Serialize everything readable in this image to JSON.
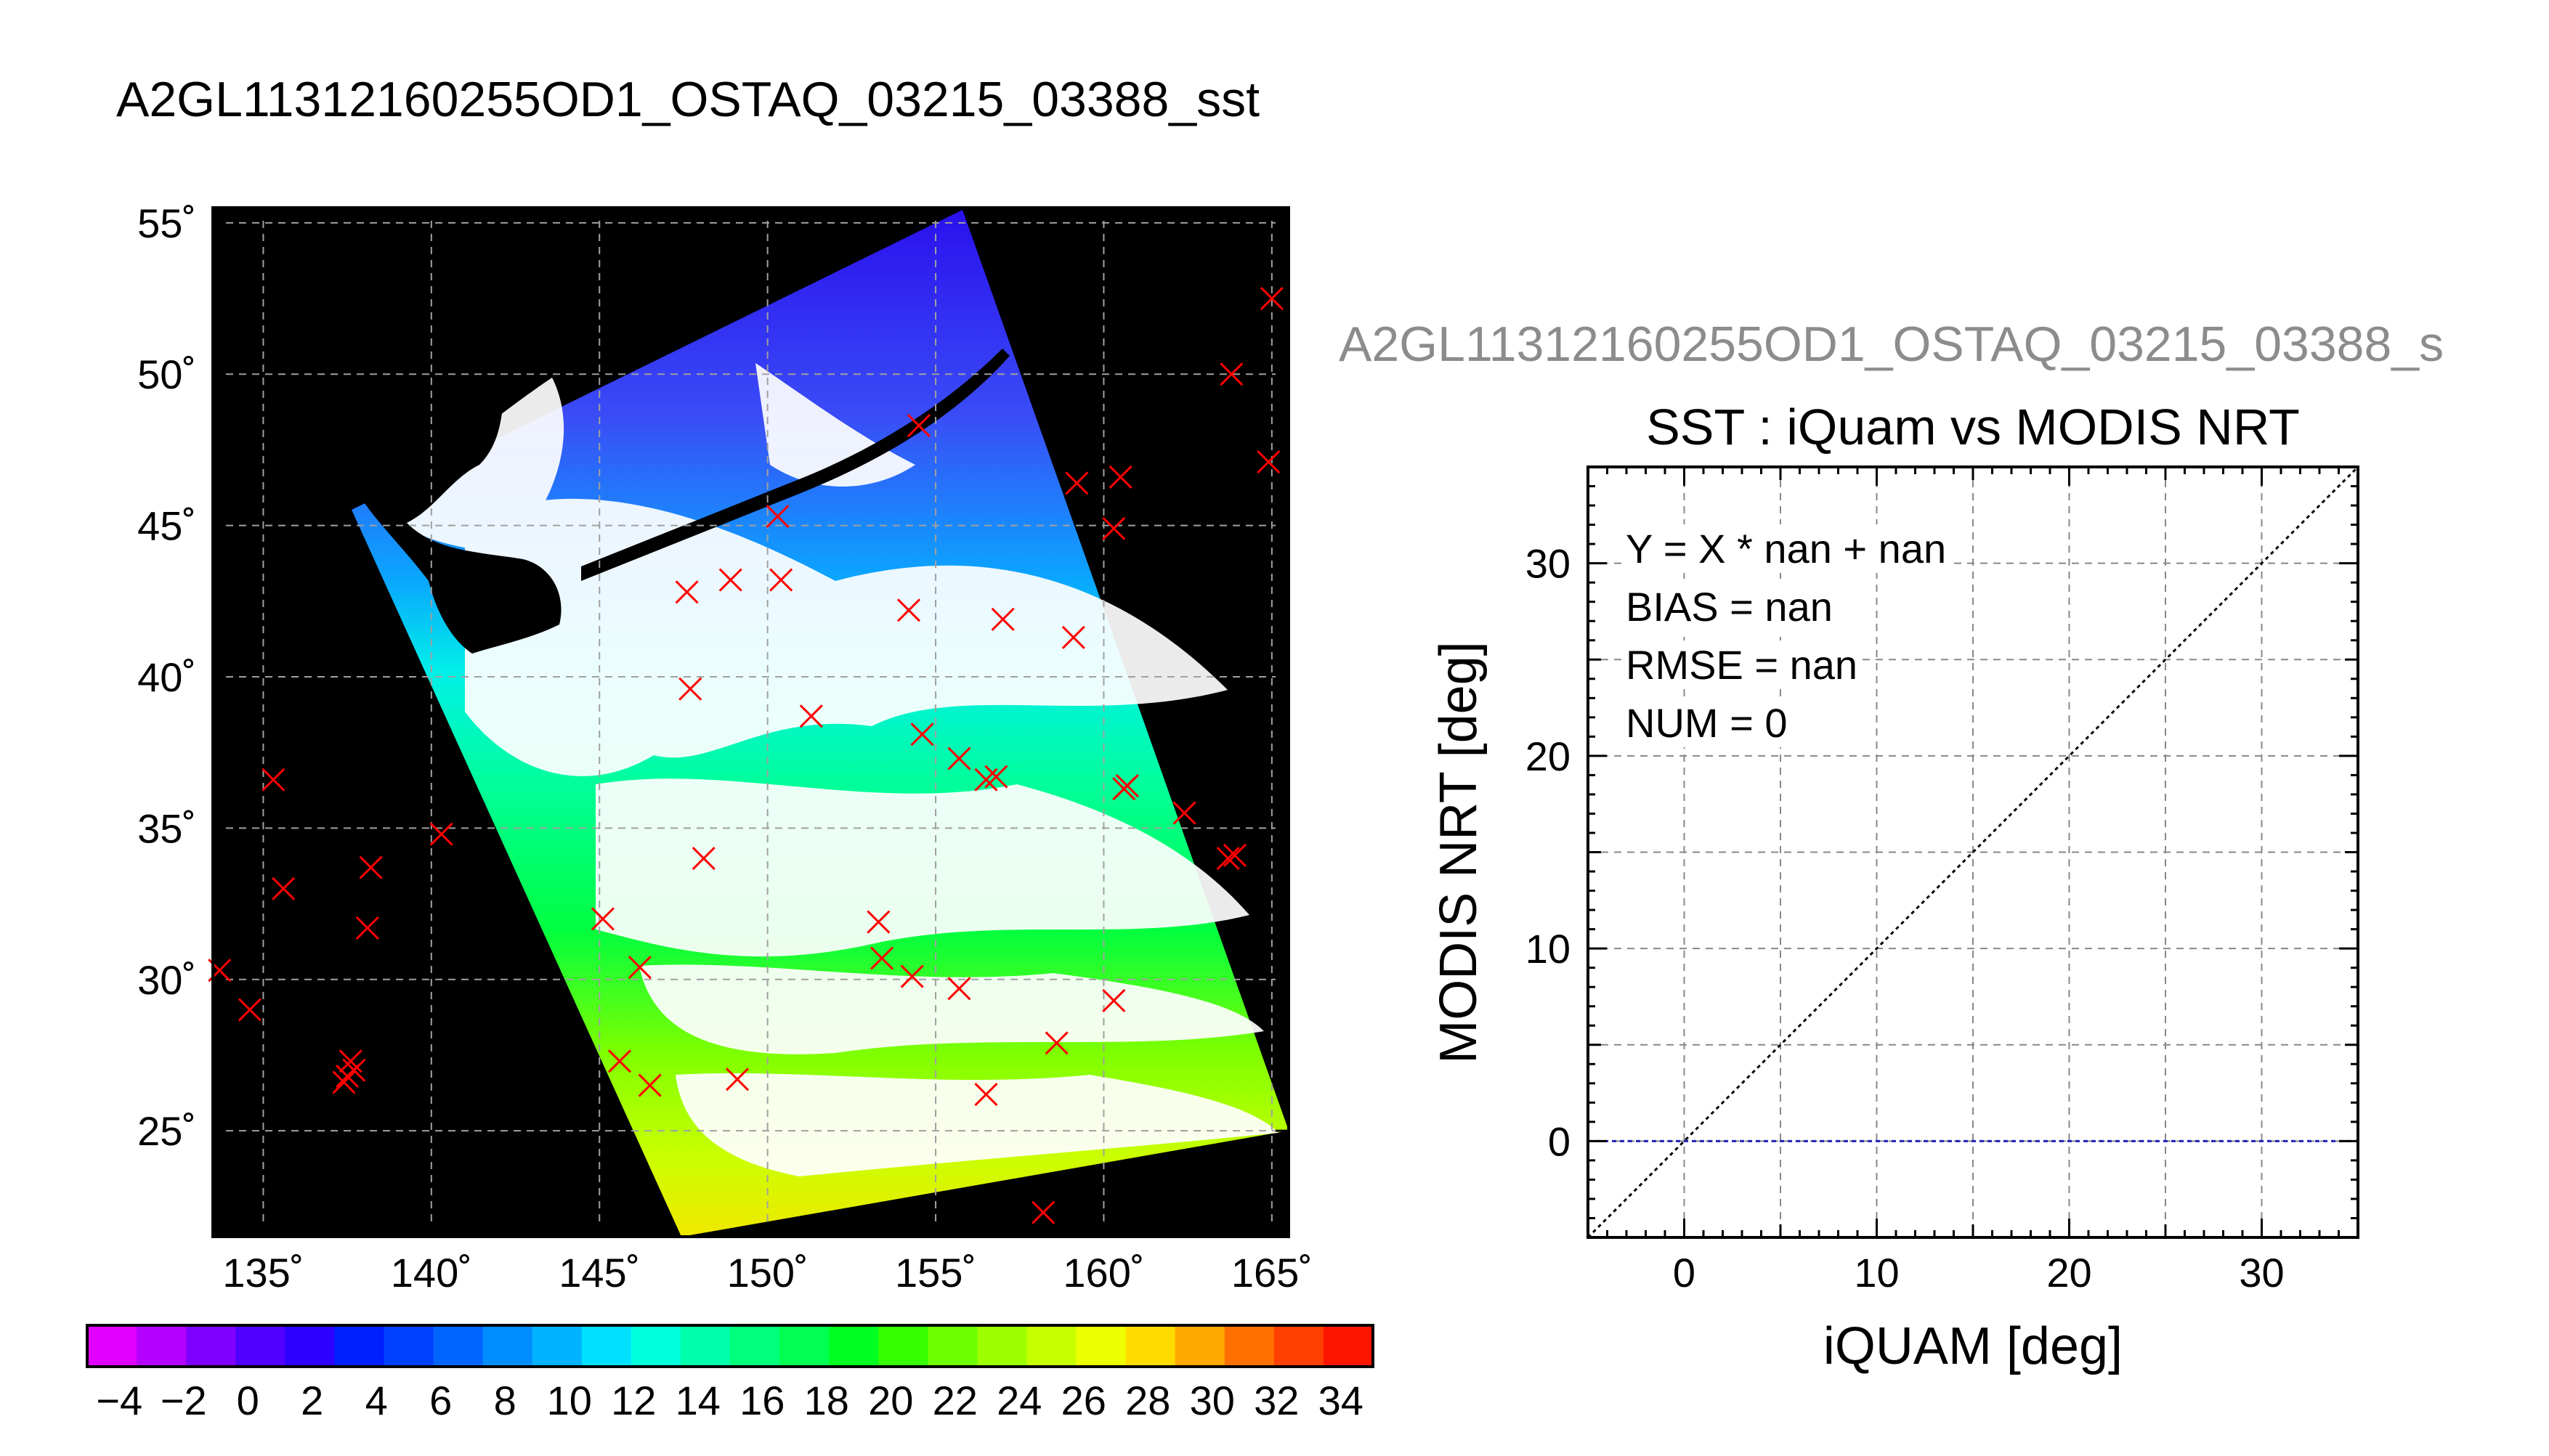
{
  "main_title": "A2GL11312160255OD1_OSTAQ_03215_03388_sst",
  "secondary_title": "A2GL11312160255OD1_OSTAQ_03215_03388_s",
  "chart_data": [
    {
      "type": "map",
      "lon_range": [
        133.5,
        165.5
      ],
      "lat_range": [
        21.5,
        55.5
      ],
      "lon_ticks": [
        135,
        140,
        145,
        150,
        155,
        160,
        165
      ],
      "lat_ticks": [
        25,
        30,
        35,
        40,
        45,
        50,
        55
      ],
      "lon_tick_labels": [
        "135˚",
        "140˚",
        "145˚",
        "150˚",
        "155˚",
        "160˚",
        "165˚"
      ],
      "lat_tick_labels": [
        "25˚",
        "30˚",
        "35˚",
        "40˚",
        "45˚",
        "50˚",
        "55˚"
      ],
      "grid": true,
      "markers": [
        [
          165.0,
          52.5
        ],
        [
          163.8,
          50.0
        ],
        [
          164.9,
          47.1
        ],
        [
          154.5,
          48.3
        ],
        [
          159.2,
          46.4
        ],
        [
          160.5,
          46.6
        ],
        [
          160.3,
          44.9
        ],
        [
          150.3,
          45.3
        ],
        [
          150.4,
          43.2
        ],
        [
          148.9,
          43.2
        ],
        [
          147.6,
          42.8
        ],
        [
          154.2,
          42.2
        ],
        [
          157.0,
          41.9
        ],
        [
          159.1,
          41.3
        ],
        [
          147.7,
          39.6
        ],
        [
          151.3,
          38.7
        ],
        [
          154.6,
          38.1
        ],
        [
          155.7,
          37.3
        ],
        [
          156.5,
          36.6
        ],
        [
          156.8,
          36.7
        ],
        [
          160.6,
          36.3
        ],
        [
          160.7,
          36.4
        ],
        [
          162.4,
          35.5
        ],
        [
          163.7,
          34.0
        ],
        [
          163.9,
          34.1
        ],
        [
          135.3,
          36.6
        ],
        [
          135.6,
          33.0
        ],
        [
          138.2,
          33.7
        ],
        [
          138.1,
          31.7
        ],
        [
          140.3,
          34.8
        ],
        [
          148.1,
          34.0
        ],
        [
          145.1,
          32.0
        ],
        [
          146.2,
          30.4
        ],
        [
          153.3,
          31.9
        ],
        [
          153.4,
          30.7
        ],
        [
          154.3,
          30.1
        ],
        [
          155.7,
          29.7
        ],
        [
          160.3,
          29.3
        ],
        [
          158.6,
          27.9
        ],
        [
          149.1,
          26.7
        ],
        [
          145.6,
          27.3
        ],
        [
          146.5,
          26.5
        ],
        [
          156.5,
          26.2
        ],
        [
          133.7,
          30.3
        ],
        [
          134.6,
          29.0
        ],
        [
          137.6,
          27.3
        ],
        [
          137.7,
          27.0
        ],
        [
          137.5,
          26.8
        ],
        [
          137.4,
          26.6
        ],
        [
          158.2,
          22.3
        ]
      ]
    },
    {
      "type": "colorbar",
      "vmin": -5,
      "vmax": 35,
      "tick_labels": [
        "−4",
        "−2",
        "0",
        "2",
        "4",
        "6",
        "8",
        "10",
        "12",
        "14",
        "16",
        "18",
        "20",
        "22",
        "24",
        "26",
        "28",
        "30",
        "32",
        "34"
      ],
      "colors": [
        "#e100ff",
        "#b400ff",
        "#8000ff",
        "#5000ff",
        "#2d00ff",
        "#0020ff",
        "#0040ff",
        "#0065ff",
        "#008dff",
        "#00b2ff",
        "#00e0ff",
        "#00ffdc",
        "#00ffaa",
        "#00ff7a",
        "#00ff50",
        "#00ff20",
        "#35ff00",
        "#6eff00",
        "#9eff00",
        "#c8ff00",
        "#edff00",
        "#ffdc00",
        "#ffa800",
        "#ff7000",
        "#ff4000",
        "#ff1400"
      ]
    },
    {
      "type": "scatter",
      "title": "SST : iQuam vs MODIS NRT",
      "xlabel": "iQUAM [deg]",
      "ylabel": "MODIS NRT [deg]",
      "xlim": [
        -5,
        35
      ],
      "ylim": [
        -5,
        35
      ],
      "x_ticks": [
        0,
        10,
        20,
        30
      ],
      "y_ticks": [
        0,
        10,
        20,
        30
      ],
      "x_tick_labels": [
        "0",
        "10",
        "20",
        "30"
      ],
      "y_tick_labels": [
        "0",
        "10",
        "20",
        "30"
      ],
      "grid": true,
      "grid_step": 5,
      "stats": [
        "Y = X * nan + nan",
        "BIAS = nan",
        "RMSE = nan",
        "NUM = 0"
      ],
      "points": [],
      "one_to_one_line": [
        [
          -5,
          -5
        ],
        [
          35,
          35
        ]
      ],
      "zero_line": 0
    }
  ]
}
